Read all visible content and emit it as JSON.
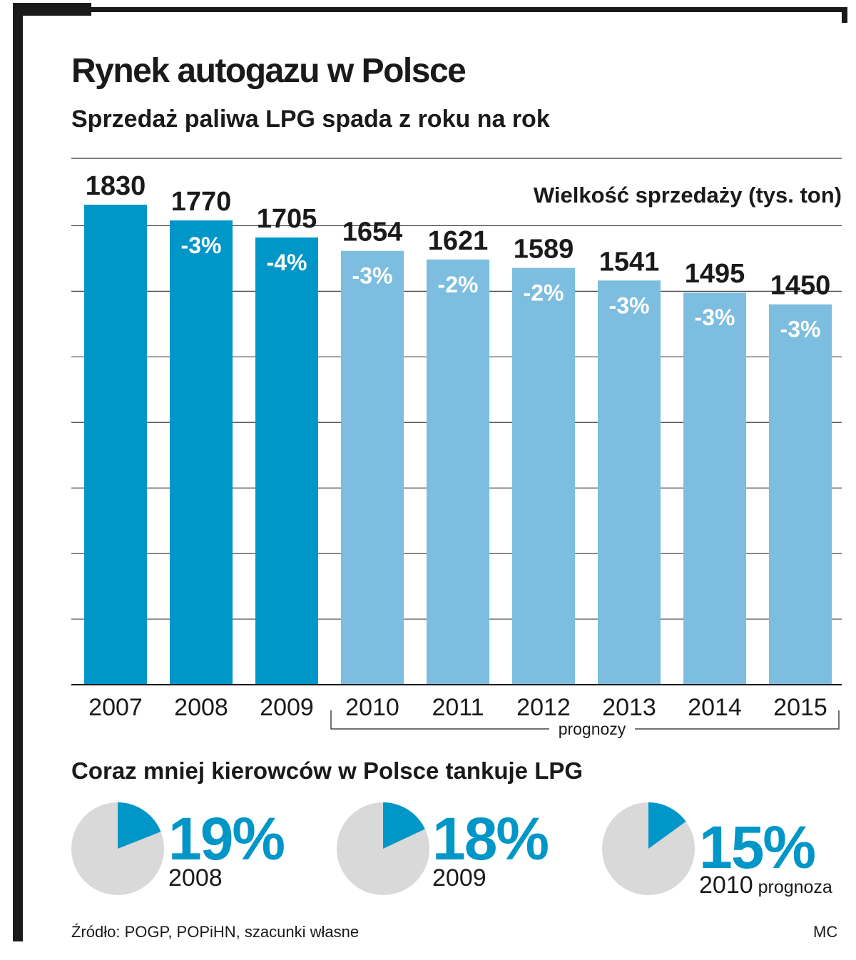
{
  "header": {
    "title": "Rynek autogazu w Polsce",
    "subtitle": "Sprzedaż paliwa LPG spada z roku na rok"
  },
  "chart_data": [
    {
      "type": "bar",
      "title": "Sprzedaż paliwa LPG spada z roku na rok",
      "ylabel": "Wielkość sprzedaży (tys. ton)",
      "categories": [
        "2007",
        "2008",
        "2009",
        "2010",
        "2011",
        "2012",
        "2013",
        "2014",
        "2015"
      ],
      "values": [
        1830,
        1770,
        1705,
        1654,
        1621,
        1589,
        1541,
        1495,
        1450
      ],
      "changes": [
        "",
        "-3%",
        "-4%",
        "-3%",
        "-2%",
        "-2%",
        "-3%",
        "-3%",
        "-3%"
      ],
      "forecast_from_index": 3,
      "forecast_label": "prognozy",
      "ylim": [
        0,
        2000
      ],
      "grid": true,
      "colors": {
        "actual": "#0096c8",
        "forecast": "#7cbde0"
      }
    },
    {
      "type": "pie",
      "title": "Coraz mniej kierowców w Polsce tankuje LPG",
      "items": [
        {
          "label": "2008",
          "value": 19,
          "display": "19%",
          "note": ""
        },
        {
          "label": "2009",
          "value": 18,
          "display": "18%",
          "note": ""
        },
        {
          "label": "2010",
          "value": 15,
          "display": "15%",
          "note": "prognoza"
        }
      ],
      "colors": {
        "slice": "#0096c8",
        "rest": "#d9d9d9"
      }
    }
  ],
  "footer": {
    "source": "Źródło: POGP, POPiHN, szacunki własne",
    "author": "MC"
  }
}
